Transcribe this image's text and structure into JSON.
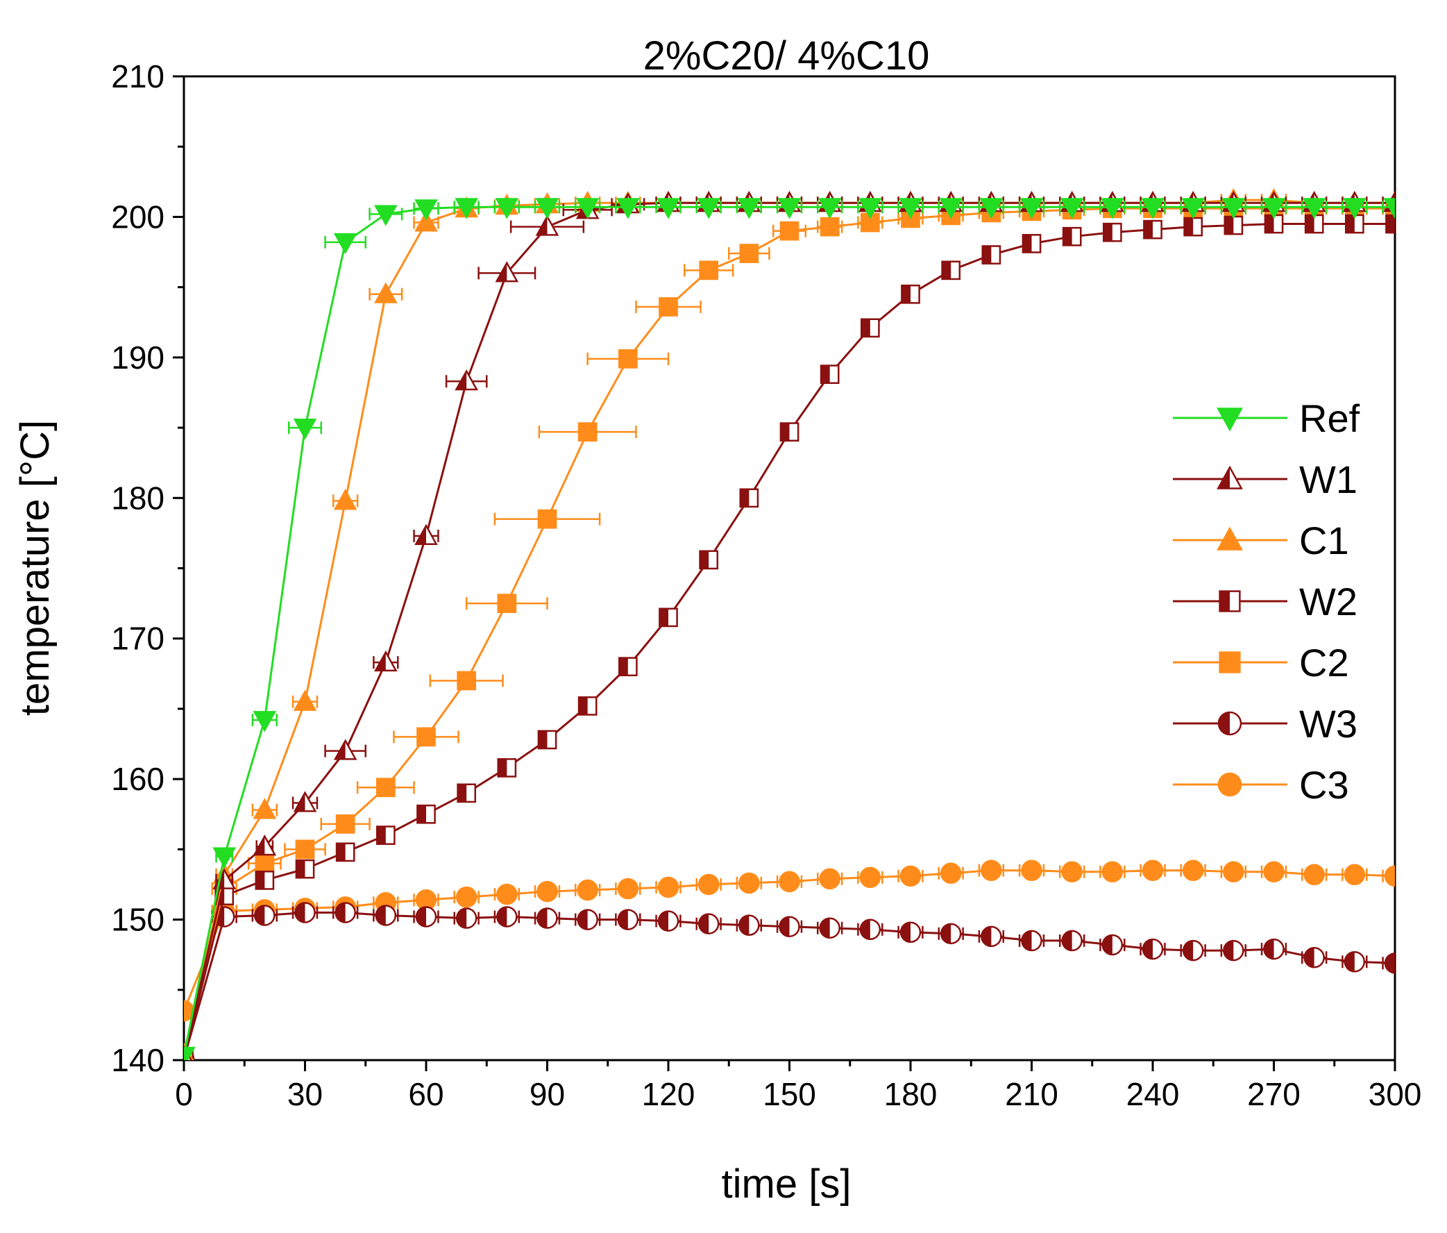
{
  "chart_data": {
    "type": "line",
    "title": "2%C20/ 4%C10",
    "xlabel": "time [s]",
    "ylabel": "temperature [°C]",
    "xlim": [
      0,
      300
    ],
    "ylim": [
      140,
      210
    ],
    "xticks": [
      0,
      30,
      60,
      90,
      120,
      150,
      180,
      210,
      240,
      270,
      300
    ],
    "yticks": [
      140,
      150,
      160,
      170,
      180,
      190,
      200,
      210
    ],
    "grid": false,
    "legend_position": "right",
    "series": [
      {
        "name": "Ref",
        "color": "#22dd22",
        "marker": "triangle-down",
        "fill": "full",
        "x": [
          0,
          10,
          20,
          30,
          40,
          50,
          60,
          70,
          80,
          90,
          100,
          110,
          120,
          130,
          140,
          150,
          160,
          170,
          180,
          190,
          200,
          210,
          220,
          230,
          240,
          250,
          260,
          270,
          280,
          290,
          300
        ],
        "y": [
          140.3,
          154.5,
          164.2,
          185.0,
          198.2,
          200.2,
          200.6,
          200.7,
          200.7,
          200.7,
          200.7,
          200.7,
          200.7,
          200.7,
          200.7,
          200.7,
          200.7,
          200.7,
          200.7,
          200.7,
          200.7,
          200.7,
          200.7,
          200.7,
          200.7,
          200.7,
          200.7,
          200.7,
          200.7,
          200.7,
          200.7
        ],
        "xerr": [
          0,
          2,
          3,
          4,
          5,
          4,
          3,
          3,
          3,
          3,
          3,
          3,
          3,
          3,
          3,
          3,
          3,
          3,
          3,
          3,
          3,
          3,
          3,
          3,
          3,
          3,
          3,
          3,
          3,
          3,
          3
        ]
      },
      {
        "name": "W1",
        "color": "#8b1010",
        "marker": "triangle-up",
        "fill": "left",
        "x": [
          0,
          10,
          20,
          30,
          40,
          50,
          60,
          70,
          80,
          90,
          100,
          110,
          120,
          130,
          140,
          150,
          160,
          170,
          180,
          190,
          200,
          210,
          220,
          230,
          240,
          250,
          260,
          270,
          280,
          290,
          300
        ],
        "y": [
          140.2,
          152.8,
          155.2,
          158.3,
          162.0,
          168.3,
          177.3,
          188.3,
          196.0,
          199.3,
          200.5,
          200.9,
          201.0,
          201.0,
          201.0,
          201.0,
          201.0,
          201.0,
          201.0,
          201.0,
          201.0,
          201.0,
          201.0,
          201.0,
          201.0,
          201.0,
          201.0,
          201.0,
          201.0,
          201.0,
          201.0
        ],
        "xerr": [
          0,
          2,
          2,
          3,
          5,
          3,
          3,
          5,
          7,
          9,
          6,
          4,
          3,
          3,
          3,
          3,
          3,
          3,
          3,
          3,
          3,
          3,
          3,
          3,
          3,
          3,
          3,
          3,
          3,
          3,
          3
        ]
      },
      {
        "name": "C1",
        "color": "#ff8c1a",
        "marker": "triangle-up",
        "fill": "full",
        "x": [
          0,
          10,
          20,
          30,
          40,
          50,
          60,
          70,
          80,
          90,
          100,
          110,
          120,
          130,
          140,
          150,
          160,
          170,
          180,
          190,
          200,
          210,
          220,
          230,
          240,
          250,
          260,
          270,
          280,
          290,
          300
        ],
        "y": [
          140.4,
          153.2,
          157.8,
          165.5,
          179.8,
          194.5,
          199.6,
          200.6,
          200.8,
          200.9,
          201.0,
          201.0,
          201.0,
          201.0,
          201.0,
          201.0,
          201.0,
          201.0,
          201.0,
          201.0,
          201.0,
          201.0,
          201.0,
          201.0,
          201.0,
          201.0,
          201.2,
          201.2,
          201.0,
          201.0,
          201.0
        ],
        "xerr": [
          0,
          2,
          3,
          3,
          3,
          4,
          3,
          3,
          3,
          3,
          3,
          3,
          3,
          3,
          3,
          3,
          3,
          3,
          3,
          3,
          3,
          3,
          3,
          3,
          3,
          3,
          3,
          3,
          3,
          3,
          3
        ]
      },
      {
        "name": "W2",
        "color": "#8b1010",
        "marker": "square",
        "fill": "left",
        "x": [
          0,
          10,
          20,
          30,
          40,
          50,
          60,
          70,
          80,
          90,
          100,
          110,
          120,
          130,
          140,
          150,
          160,
          170,
          180,
          190,
          200,
          210,
          220,
          230,
          240,
          250,
          260,
          270,
          280,
          290,
          300
        ],
        "y": [
          140.1,
          151.7,
          152.8,
          153.6,
          154.8,
          156.0,
          157.5,
          159.0,
          160.8,
          162.8,
          165.2,
          168.0,
          171.5,
          175.6,
          180.0,
          184.7,
          188.8,
          192.1,
          194.5,
          196.2,
          197.3,
          198.1,
          198.6,
          198.9,
          199.1,
          199.3,
          199.4,
          199.5,
          199.5,
          199.5,
          199.5
        ],
        "xerr": [
          0,
          2,
          2,
          2,
          2,
          2,
          2,
          2,
          2,
          2,
          2,
          2,
          2,
          2,
          2,
          2,
          2,
          2,
          2,
          2,
          2,
          2,
          2,
          2,
          2,
          2,
          2,
          2,
          2,
          2,
          2
        ]
      },
      {
        "name": "C2",
        "color": "#ff8c1a",
        "marker": "square",
        "fill": "full",
        "x": [
          0,
          10,
          20,
          30,
          40,
          50,
          60,
          70,
          80,
          90,
          100,
          110,
          120,
          130,
          140,
          150,
          160,
          170,
          180,
          190,
          200,
          210,
          220,
          230,
          240,
          250,
          260,
          270,
          280,
          290,
          300
        ],
        "y": [
          140.2,
          152.2,
          154.0,
          155.0,
          156.8,
          159.4,
          163.0,
          167.0,
          172.5,
          178.5,
          184.7,
          189.9,
          193.6,
          196.2,
          197.4,
          199.0,
          199.3,
          199.6,
          199.9,
          200.1,
          200.3,
          200.4,
          200.5,
          200.6,
          200.6,
          200.6,
          200.6,
          200.6,
          200.6,
          200.6,
          200.6
        ],
        "xerr": [
          0,
          3,
          4,
          5,
          6,
          7,
          8,
          9,
          10,
          13,
          12,
          10,
          8,
          6,
          5,
          4,
          3,
          3,
          3,
          3,
          3,
          3,
          3,
          3,
          3,
          3,
          3,
          3,
          3,
          3,
          3
        ]
      },
      {
        "name": "W3",
        "color": "#8b1010",
        "marker": "circle",
        "fill": "left",
        "x": [
          0,
          10,
          20,
          30,
          40,
          50,
          60,
          70,
          80,
          90,
          100,
          110,
          120,
          130,
          140,
          150,
          160,
          170,
          180,
          190,
          200,
          210,
          220,
          230,
          240,
          250,
          260,
          270,
          280,
          290,
          300
        ],
        "y": [
          140.1,
          150.2,
          150.3,
          150.5,
          150.5,
          150.3,
          150.2,
          150.1,
          150.2,
          150.1,
          150.0,
          150.0,
          149.9,
          149.7,
          149.6,
          149.5,
          149.4,
          149.3,
          149.1,
          149.0,
          148.8,
          148.5,
          148.5,
          148.2,
          147.9,
          147.8,
          147.8,
          147.9,
          147.3,
          147.0,
          146.9
        ],
        "xerr": [
          0,
          3,
          3,
          3,
          3,
          3,
          3,
          3,
          3,
          3,
          3,
          3,
          3,
          3,
          3,
          3,
          3,
          3,
          3,
          3,
          3,
          3,
          3,
          3,
          3,
          3,
          3,
          3,
          3,
          3,
          3
        ]
      },
      {
        "name": "C3",
        "color": "#ff8c1a",
        "marker": "circle",
        "fill": "full",
        "x": [
          0,
          10,
          20,
          30,
          40,
          50,
          60,
          70,
          80,
          90,
          100,
          110,
          120,
          130,
          140,
          150,
          160,
          170,
          180,
          190,
          200,
          210,
          220,
          230,
          240,
          250,
          260,
          270,
          280,
          290,
          300
        ],
        "y": [
          143.5,
          150.6,
          150.7,
          150.8,
          150.9,
          151.2,
          151.4,
          151.6,
          151.8,
          152.0,
          152.1,
          152.2,
          152.3,
          152.5,
          152.6,
          152.7,
          152.9,
          153.0,
          153.1,
          153.3,
          153.5,
          153.5,
          153.4,
          153.4,
          153.5,
          153.5,
          153.4,
          153.4,
          153.2,
          153.2,
          153.1
        ],
        "xerr": [
          0,
          3,
          3,
          3,
          3,
          3,
          3,
          3,
          3,
          3,
          3,
          3,
          3,
          3,
          3,
          3,
          3,
          3,
          3,
          3,
          3,
          3,
          3,
          3,
          3,
          3,
          3,
          3,
          3,
          3,
          3
        ]
      }
    ]
  }
}
